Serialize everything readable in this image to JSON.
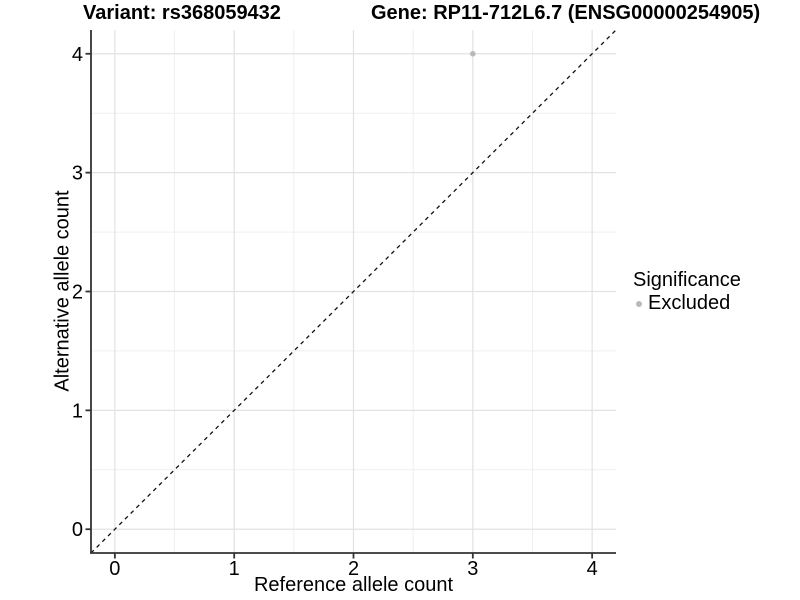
{
  "header": {
    "variant_title": "Variant: rs368059432",
    "gene_title": "Gene: RP11-712L6.7 (ENSG00000254905)"
  },
  "legend": {
    "title": "Significance",
    "items": [
      {
        "label": "Excluded",
        "color": "#b9b9b9"
      }
    ]
  },
  "chart_data": {
    "type": "scatter",
    "xlabel": "Reference allele count",
    "ylabel": "Alternative allele count",
    "xlim": [
      -0.2,
      4.2
    ],
    "ylim": [
      -0.2,
      4.2
    ],
    "xticks": [
      0,
      1,
      2,
      3,
      4
    ],
    "yticks": [
      0,
      1,
      2,
      3,
      4
    ],
    "xminor": [
      0.5,
      1.5,
      2.5,
      3.5
    ],
    "yminor": [
      0.5,
      1.5,
      2.5,
      3.5
    ],
    "grid": "major+minor",
    "legend_position": "right",
    "identity_line": {
      "style": "dashed",
      "from": [
        -0.2,
        -0.2
      ],
      "to": [
        4.2,
        4.2
      ]
    },
    "series": [
      {
        "name": "Excluded",
        "color": "#b9b9b9",
        "point_radius": 2.8,
        "points": [
          [
            3,
            4
          ]
        ]
      }
    ]
  },
  "colors": {
    "background": "#ffffff",
    "grid_major": "#e2e2e2",
    "grid_minor": "#efefef",
    "axis": "#333333",
    "dashed_line": "#111111",
    "text": "#000000",
    "point": "#b9b9b9"
  }
}
